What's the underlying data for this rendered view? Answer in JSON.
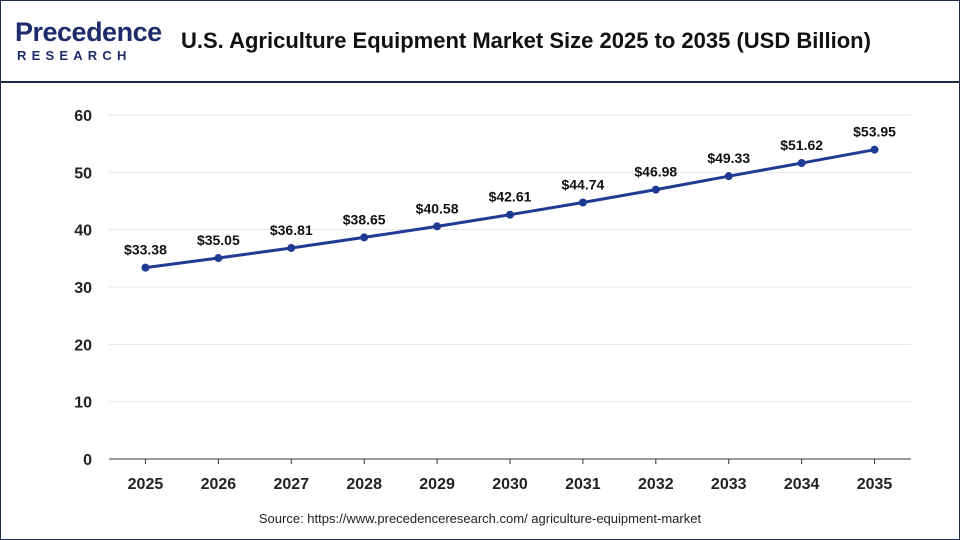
{
  "header": {
    "logo_top": "Precedence",
    "logo_bottom": "RESEARCH",
    "title": "U.S. Agriculture Equipment Market Size 2025 to 2035 (USD Billion)"
  },
  "source": "Source: https://www.precedenceresearch.com/ agriculture-equipment-market",
  "colors": {
    "line": "#1f3a93",
    "point": "#1f3a93",
    "grid": "#e6e6e6",
    "axis": "#333333",
    "brand": "#1f2c6b"
  },
  "chart_data": {
    "type": "line",
    "categories": [
      "2025",
      "2026",
      "2027",
      "2028",
      "2029",
      "2030",
      "2031",
      "2032",
      "2033",
      "2034",
      "2035"
    ],
    "series": [
      {
        "values": [
          33.38,
          35.05,
          36.81,
          38.65,
          40.58,
          42.61,
          44.74,
          46.98,
          49.33,
          51.62,
          53.95
        ],
        "labels": [
          "$33.38",
          "$35.05",
          "$36.81",
          "$38.65",
          "$40.58",
          "$42.61",
          "$44.74",
          "$46.98",
          "$49.33",
          "$51.62",
          "$53.95"
        ]
      }
    ],
    "ylim": [
      0,
      60
    ],
    "yticks": [
      "0",
      "10",
      "20",
      "30",
      "40",
      "50",
      "60"
    ],
    "grid": true,
    "legend": "none",
    "title": "U.S. Agriculture Equipment Market Size 2025 to 2035 (USD Billion)",
    "xlabel": "",
    "ylabel": ""
  }
}
